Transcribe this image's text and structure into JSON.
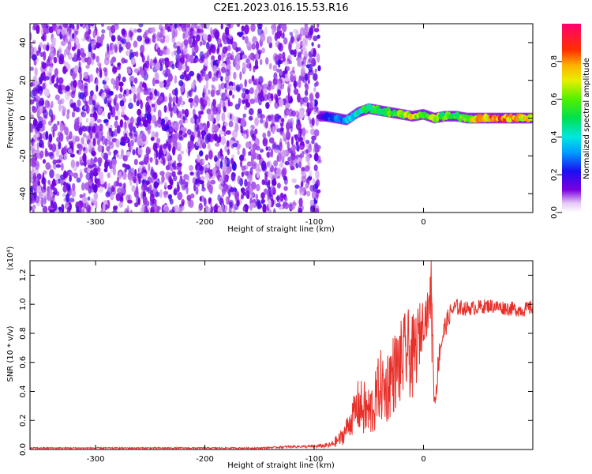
{
  "title": "C2E1.2023.016.15.53.R16",
  "chart_data": [
    {
      "type": "heatmap",
      "title": "C2E1.2023.016.15.53.R16",
      "xlabel": "Height of straight line (km)",
      "ylabel": "Frequency (Hz)",
      "xlim": [
        -360,
        100
      ],
      "ylim": [
        -50,
        50
      ],
      "xticks": [
        -300,
        -200,
        -100,
        0
      ],
      "yticks": [
        -40,
        -20,
        0,
        20,
        40
      ],
      "noise_region_x": [
        -360,
        -95
      ],
      "signal_region_x": [
        -95,
        100
      ],
      "signal_ridge": {
        "x": [
          -95,
          -90,
          -80,
          -70,
          -60,
          -50,
          -40,
          -30,
          -20,
          -10,
          0,
          10,
          20,
          30,
          40,
          50,
          60,
          70,
          80,
          90,
          100
        ],
        "y": [
          1,
          1,
          0,
          -1,
          3,
          5,
          4,
          3,
          2,
          1,
          2,
          0,
          1,
          1,
          0,
          0,
          0,
          0,
          0,
          0,
          0
        ],
        "amplitude": [
          0.15,
          0.25,
          0.3,
          0.35,
          0.45,
          0.55,
          0.6,
          0.6,
          0.7,
          0.75,
          0.6,
          0.65,
          0.6,
          0.6,
          0.65,
          0.75,
          0.85,
          0.9,
          0.85,
          0.8,
          0.75
        ]
      },
      "colorbar": {
        "label": "Normalized spectral amplitude",
        "range": [
          0,
          1
        ],
        "ticks": [
          "0.0",
          "0.2",
          "0.4",
          "0.6",
          "0.8"
        ],
        "tick_values": [
          0,
          0.2,
          0.4,
          0.6,
          0.8
        ],
        "colormap": "rainbow"
      },
      "grid": false
    },
    {
      "type": "line",
      "xlabel": "Height of straight line (km)",
      "ylabel": "SNR (10 * v/v)",
      "y_multiplier": "(x10⁴)",
      "xlim": [
        -360,
        100
      ],
      "ylim": [
        0,
        1.3
      ],
      "xticks": [
        -300,
        -200,
        -100,
        0
      ],
      "yticks": [
        0.0,
        0.2,
        0.4,
        0.6,
        0.8,
        1.0,
        1.2
      ],
      "ytick_labels": [
        "0.0",
        "0.2",
        "0.4",
        "0.6",
        "0.8",
        "1.0",
        "1.2"
      ],
      "series": [
        {
          "color": "#e8302a",
          "x": [
            -360,
            -340,
            -300,
            -250,
            -200,
            -150,
            -120,
            -100,
            -85,
            -75,
            -70,
            -65,
            -60,
            -55,
            -50,
            -45,
            -40,
            -35,
            -30,
            -25,
            -20,
            -15,
            -10,
            -5,
            0,
            5,
            7,
            10,
            15,
            20,
            25,
            30,
            40,
            50,
            60,
            70,
            80,
            90,
            100
          ],
          "y": [
            0.01,
            0.01,
            0.01,
            0.01,
            0.01,
            0.01,
            0.02,
            0.02,
            0.03,
            0.08,
            0.15,
            0.22,
            0.3,
            0.28,
            0.25,
            0.3,
            0.45,
            0.4,
            0.5,
            0.55,
            0.6,
            0.68,
            0.62,
            0.75,
            0.9,
            0.95,
            1.2,
            0.3,
            0.7,
            0.85,
            0.95,
            0.98,
            0.97,
            0.98,
            0.99,
            0.98,
            0.97,
            0.96,
            0.98
          ],
          "noise_amplitude": [
            0.005,
            0.005,
            0.005,
            0.005,
            0.005,
            0.005,
            0.008,
            0.01,
            0.02,
            0.06,
            0.08,
            0.12,
            0.18,
            0.2,
            0.2,
            0.2,
            0.25,
            0.25,
            0.28,
            0.28,
            0.3,
            0.3,
            0.3,
            0.25,
            0.15,
            0.15,
            0.08,
            0.1,
            0.1,
            0.08,
            0.06,
            0.06,
            0.05,
            0.05,
            0.05,
            0.05,
            0.05,
            0.05,
            0.05
          ]
        }
      ],
      "grid": false
    }
  ]
}
